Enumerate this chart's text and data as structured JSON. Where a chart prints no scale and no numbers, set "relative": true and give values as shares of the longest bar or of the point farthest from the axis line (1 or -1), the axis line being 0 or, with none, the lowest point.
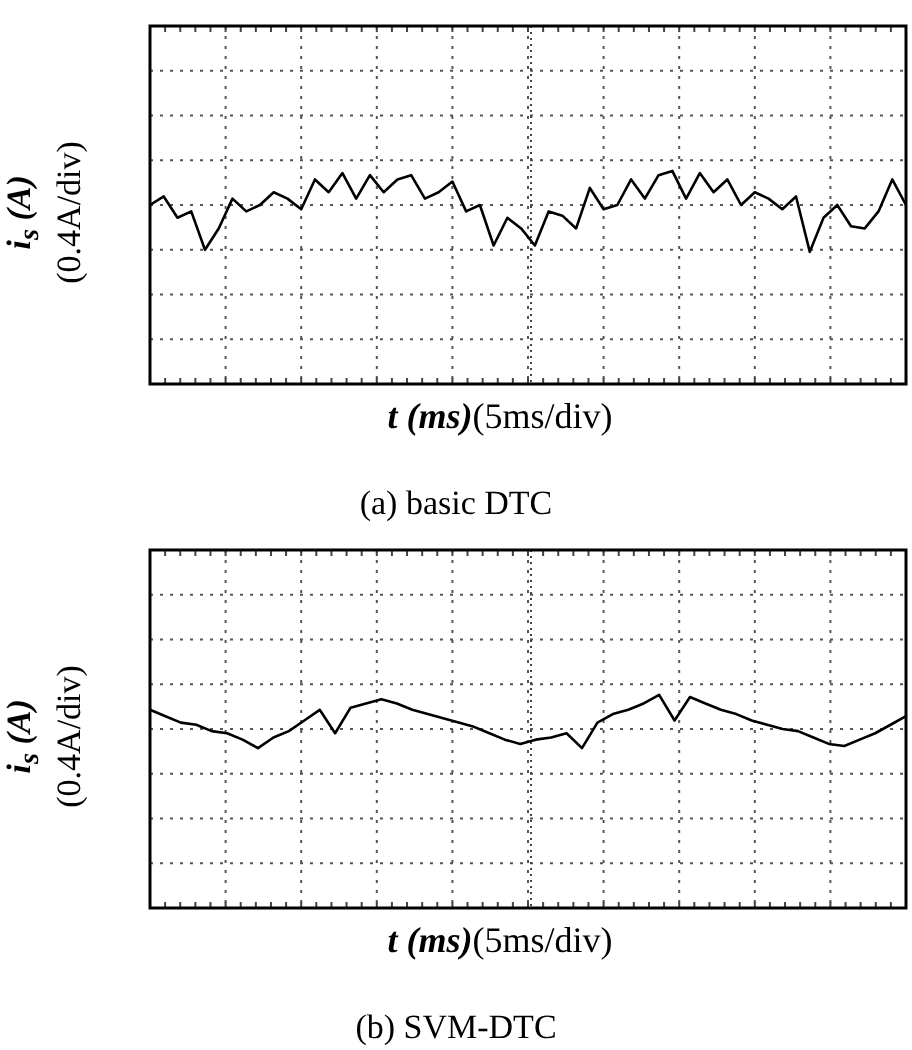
{
  "chart_data": [
    {
      "type": "line",
      "title": "(a) basic DTC",
      "xlabel": "t (ms)(5ms/div)",
      "ylabel": "i$_{s}$ (A)\n(0.4A/div)",
      "relative": true,
      "grid": true,
      "legend": false,
      "marker": "none",
      "line_style": "solid",
      "categories": [
        null,
        null,
        null,
        null,
        null,
        null,
        null,
        null,
        null,
        null,
        null,
        null,
        null,
        null,
        null,
        null,
        null,
        null,
        null,
        null,
        null,
        null,
        null,
        null,
        null,
        null,
        null,
        null,
        null,
        null,
        null,
        null,
        null,
        null,
        null,
        null,
        null,
        null,
        null,
        null,
        null,
        null,
        null,
        null,
        null,
        null,
        null,
        null,
        null,
        null,
        null,
        null,
        null,
        null,
        null,
        null
      ],
      "series": [
        {
          "color": "#000000",
          "values": [
            0.84,
            0.88,
            0.78,
            0.81,
            0.63,
            0.73,
            0.87,
            0.81,
            0.84,
            0.9,
            0.87,
            0.82,
            0.96,
            0.9,
            0.99,
            0.87,
            0.98,
            0.9,
            0.96,
            0.98,
            0.87,
            0.9,
            0.95,
            0.81,
            0.84,
            0.65,
            0.78,
            0.73,
            0.65,
            0.81,
            0.79,
            0.73,
            0.92,
            0.82,
            0.84,
            0.96,
            0.87,
            0.98,
            1,
            0.87,
            0.99,
            0.9,
            0.96,
            0.84,
            0.9,
            0.87,
            0.82,
            0.88,
            0.62,
            0.78,
            0.84,
            0.74,
            0.73,
            0.81,
            0.96,
            0.84
          ]
        }
      ]
    },
    {
      "type": "line",
      "title": "(b) SVM-DTC",
      "xlabel": "t (ms)(5ms/div)",
      "ylabel": "i$_{s}$ (A)\n(0.4A/div)",
      "relative": true,
      "grid": true,
      "legend": false,
      "marker": "none",
      "line_style": "solid",
      "categories": [
        null,
        null,
        null,
        null,
        null,
        null,
        null,
        null,
        null,
        null,
        null,
        null,
        null,
        null,
        null,
        null,
        null,
        null,
        null,
        null,
        null,
        null,
        null,
        null,
        null,
        null,
        null,
        null,
        null,
        null,
        null,
        null,
        null,
        null,
        null,
        null,
        null,
        null,
        null,
        null,
        null,
        null,
        null,
        null,
        null,
        null,
        null,
        null,
        null,
        null
      ],
      "series": [
        {
          "color": "#000000",
          "values": [
            0.93,
            0.9,
            0.87,
            0.86,
            0.83,
            0.82,
            0.79,
            0.75,
            0.8,
            0.83,
            0.88,
            0.93,
            0.82,
            0.94,
            0.96,
            0.98,
            0.96,
            0.93,
            0.91,
            0.89,
            0.87,
            0.85,
            0.82,
            0.79,
            0.77,
            0.79,
            0.8,
            0.82,
            0.75,
            0.87,
            0.91,
            0.93,
            0.96,
            1,
            0.88,
            0.99,
            0.96,
            0.93,
            0.91,
            0.88,
            0.86,
            0.84,
            0.83,
            0.8,
            0.77,
            0.76,
            0.79,
            0.82,
            0.86,
            0.9
          ]
        }
      ]
    }
  ]
}
